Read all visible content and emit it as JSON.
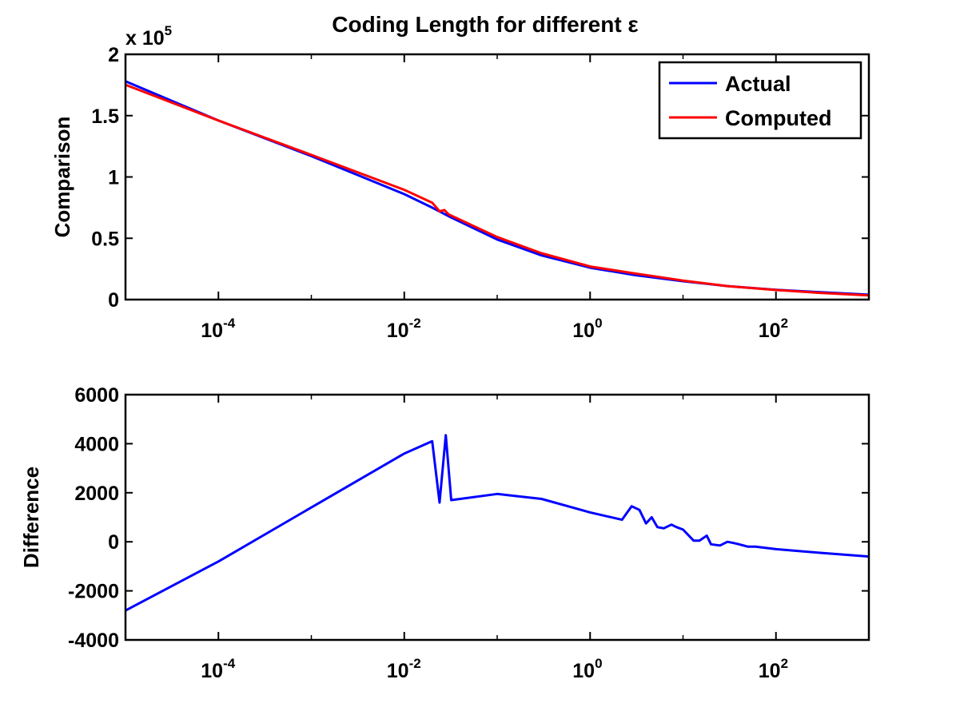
{
  "figure": {
    "title": "Coding Length for different ε"
  },
  "chart_data": [
    {
      "type": "line",
      "title": "Coding Length for different ε",
      "xlabel": "",
      "ylabel": "Comparison",
      "xscale": "log",
      "xlim": [
        1e-05,
        1000
      ],
      "ylim": [
        0,
        200000
      ],
      "y_multiplier_label": "x 10",
      "y_multiplier_exponent": "5",
      "yticks": [
        0,
        50000,
        100000,
        150000,
        200000
      ],
      "ytick_labels": [
        "0",
        "0.5",
        "1",
        "1.5",
        "2"
      ],
      "xticks": [
        0.0001,
        0.01,
        1,
        100
      ],
      "xtick_labels": [
        {
          "base": "10",
          "exp": "-4"
        },
        {
          "base": "10",
          "exp": "-2"
        },
        {
          "base": "10",
          "exp": "0"
        },
        {
          "base": "10",
          "exp": "2"
        }
      ],
      "grid": false,
      "legend_position": "top-right",
      "series": [
        {
          "name": "Actual",
          "color": "#0000ff",
          "x": [
            1e-05,
            0.0001,
            0.001,
            0.01,
            0.02,
            0.03,
            0.1,
            0.3,
            1,
            3,
            10,
            30,
            100,
            300,
            1000
          ],
          "y": [
            178000,
            146000,
            117000,
            86000,
            75000,
            68000,
            49000,
            36000,
            26000,
            20000,
            15000,
            11000,
            8000,
            6000,
            4000
          ]
        },
        {
          "name": "Computed",
          "color": "#ff0000",
          "x": [
            1e-05,
            0.0001,
            0.001,
            0.01,
            0.02,
            0.024,
            0.027,
            0.03,
            0.1,
            0.3,
            1,
            3,
            10,
            30,
            100,
            300,
            1000
          ],
          "y": [
            175200,
            146000,
            118000,
            89500,
            79000,
            72000,
            73000,
            69500,
            51000,
            37800,
            27000,
            21400,
            15500,
            11000,
            7800,
            5500,
            3400
          ]
        }
      ]
    },
    {
      "type": "line",
      "xlabel": "",
      "ylabel": "Difference",
      "xscale": "log",
      "xlim": [
        1e-05,
        1000
      ],
      "ylim": [
        -4000,
        6000
      ],
      "yticks": [
        -4000,
        -2000,
        0,
        2000,
        4000,
        6000
      ],
      "ytick_labels": [
        "-4000",
        "-2000",
        "0",
        "2000",
        "4000",
        "6000"
      ],
      "xticks": [
        0.0001,
        0.01,
        1,
        100
      ],
      "xtick_labels": [
        {
          "base": "10",
          "exp": "-4"
        },
        {
          "base": "10",
          "exp": "-2"
        },
        {
          "base": "10",
          "exp": "0"
        },
        {
          "base": "10",
          "exp": "2"
        }
      ],
      "grid": false,
      "series": [
        {
          "color": "#0000ff",
          "x": [
            1e-05,
            0.0001,
            0.001,
            0.01,
            0.02,
            0.024,
            0.028,
            0.032,
            0.1,
            0.3,
            1,
            2.2,
            2.8,
            3.4,
            4,
            4.6,
            5.3,
            6.2,
            7.5,
            8.5,
            10,
            13,
            15,
            18,
            20,
            25,
            30,
            35,
            40,
            50,
            60,
            100,
            300,
            1000
          ],
          "y": [
            -2800,
            -800,
            1400,
            3600,
            4100,
            1600,
            4350,
            1700,
            1950,
            1750,
            1200,
            900,
            1450,
            1300,
            750,
            1000,
            600,
            550,
            700,
            600,
            500,
            50,
            50,
            250,
            -100,
            -150,
            0,
            -50,
            -100,
            -200,
            -200,
            -300,
            -450,
            -600
          ]
        }
      ]
    }
  ]
}
